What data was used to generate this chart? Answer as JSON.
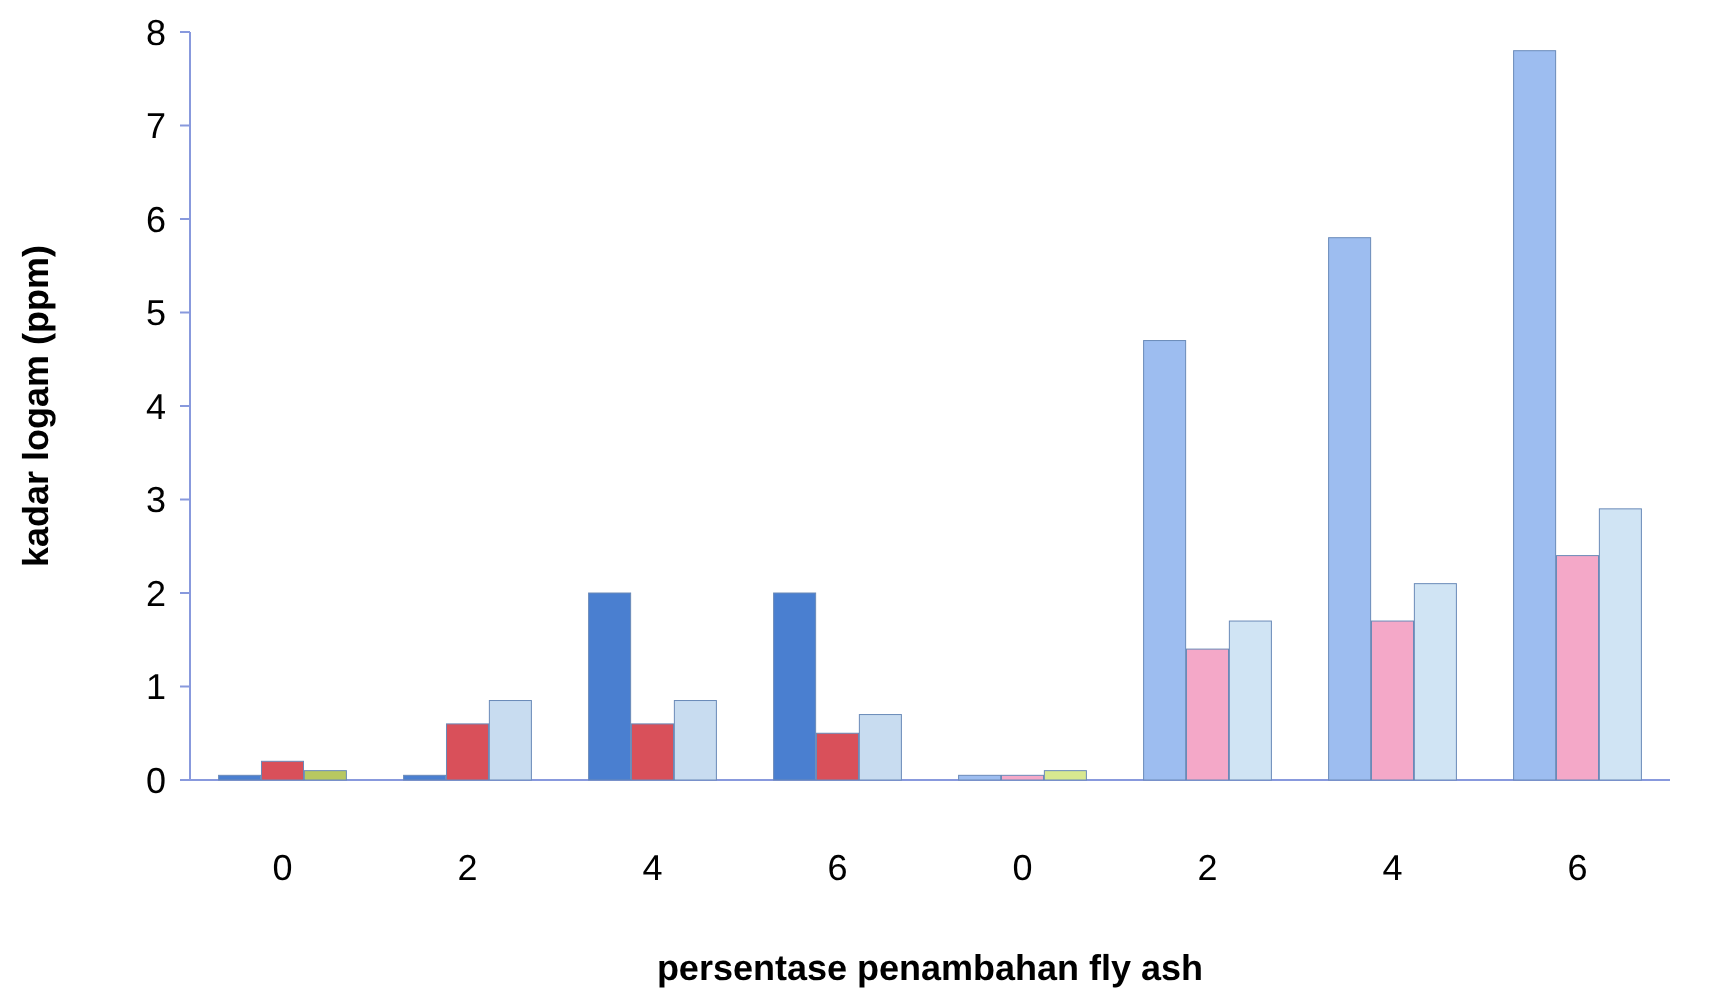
{
  "chart_data": {
    "type": "bar",
    "xlabel": "persentase penambahan fly ash",
    "ylabel": "kadar logam (ppm)",
    "categories": [
      "0",
      "2",
      "4",
      "6",
      "0",
      "2",
      "4",
      "6"
    ],
    "series": [
      {
        "colors": [
          "#4a7fd0",
          "#4a7fd0",
          "#4a7fd0",
          "#4a7fd0",
          "#9dbdf0",
          "#9dbdf0",
          "#9dbdf0",
          "#9dbdf0"
        ],
        "values": [
          0.05,
          0.05,
          2.0,
          2.0,
          0.05,
          4.7,
          5.8,
          7.8
        ]
      },
      {
        "colors": [
          "#d9505a",
          "#d9505a",
          "#d9505a",
          "#d9505a",
          "#f4a8c8",
          "#f4a8c8",
          "#f4a8c8",
          "#f4a8c8"
        ],
        "values": [
          0.2,
          0.6,
          0.6,
          0.5,
          0.05,
          1.4,
          1.7,
          2.4
        ]
      },
      {
        "colors": [
          "#b8c860",
          "#c8dcf0",
          "#c8dcf0",
          "#c8dcf0",
          "#d8e890",
          "#d0e4f4",
          "#d0e4f4",
          "#d0e4f4"
        ],
        "values": [
          0.1,
          0.85,
          0.85,
          0.7,
          0.1,
          1.7,
          2.1,
          2.9
        ]
      }
    ],
    "ylim": [
      0,
      8
    ],
    "yticks": [
      0,
      1,
      2,
      3,
      4,
      5,
      6,
      7,
      8
    ],
    "grid": false
  }
}
